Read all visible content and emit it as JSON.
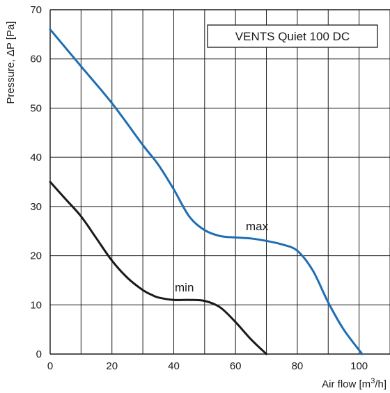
{
  "chart_data": {
    "type": "line",
    "title": "VENTS Quiet 100 DC",
    "xlabel": "Air flow [m",
    "xlabel_sup": "3",
    "xlabel_tail": "/h]",
    "ylabel": "Pressure, ΔP [Pa]",
    "xlim": [
      0,
      110
    ],
    "ylim": [
      0,
      70
    ],
    "x_ticks": [
      "0",
      "20",
      "40",
      "60",
      "80",
      "100"
    ],
    "y_ticks": [
      "0",
      "10",
      "20",
      "30",
      "40",
      "50",
      "60",
      "70"
    ],
    "x_tick_values": [
      0,
      20,
      40,
      60,
      80,
      100
    ],
    "y_tick_values": [
      0,
      10,
      20,
      30,
      40,
      50,
      60,
      70
    ],
    "grid": true,
    "series": [
      {
        "name": "max",
        "color": "#1f6eb3",
        "x": [
          0,
          10,
          20,
          30,
          35,
          40,
          45,
          50,
          55,
          60,
          65,
          70,
          75,
          80,
          85,
          90,
          95,
          101
        ],
        "y": [
          66,
          58.5,
          51,
          42.5,
          38.5,
          33.5,
          28,
          25.2,
          24,
          23.7,
          23.5,
          23,
          22.3,
          21,
          17,
          10.5,
          5,
          0
        ]
      },
      {
        "name": "min",
        "color": "#1a1a1a",
        "x": [
          0,
          5,
          10,
          15,
          20,
          25,
          30,
          33,
          35,
          40,
          45,
          50,
          55,
          60,
          65,
          70
        ],
        "y": [
          35,
          31.5,
          28,
          23.5,
          19,
          15.5,
          13,
          12,
          11.5,
          11,
          11,
          10.8,
          9.5,
          6.5,
          3,
          0
        ]
      }
    ]
  }
}
